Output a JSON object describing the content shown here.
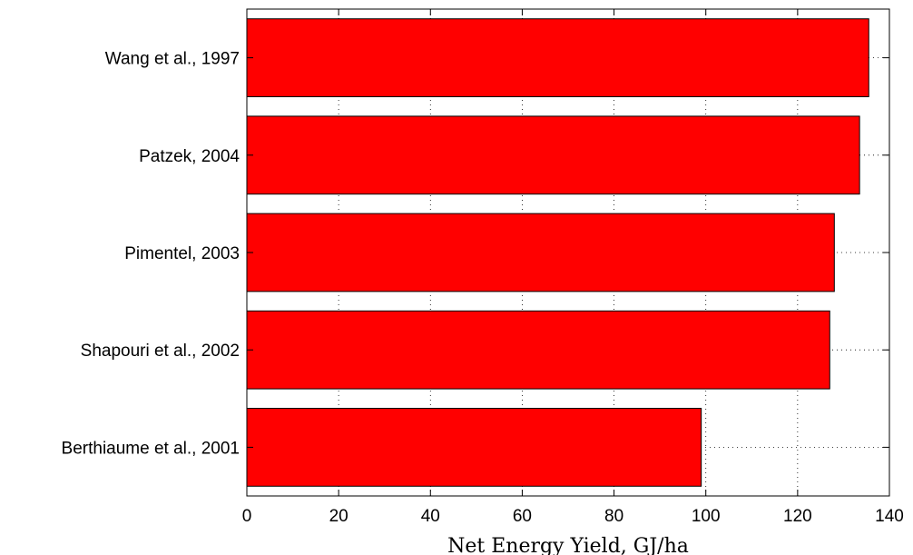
{
  "chart_data": {
    "type": "bar",
    "orientation": "horizontal",
    "categories": [
      "Wang et al., 1997",
      "Patzek, 2004",
      "Pimentel, 2003",
      "Shapouri et al., 2002",
      "Berthiaume et al., 2001"
    ],
    "values": [
      135.5,
      133.5,
      128,
      127,
      99
    ],
    "xlabel": "Net Energy Yield, GJ/ha",
    "xlim": [
      0,
      140
    ],
    "xticks": [
      0,
      20,
      40,
      60,
      80,
      100,
      120,
      140
    ],
    "grid": true,
    "bar_color": "#ff0000"
  }
}
